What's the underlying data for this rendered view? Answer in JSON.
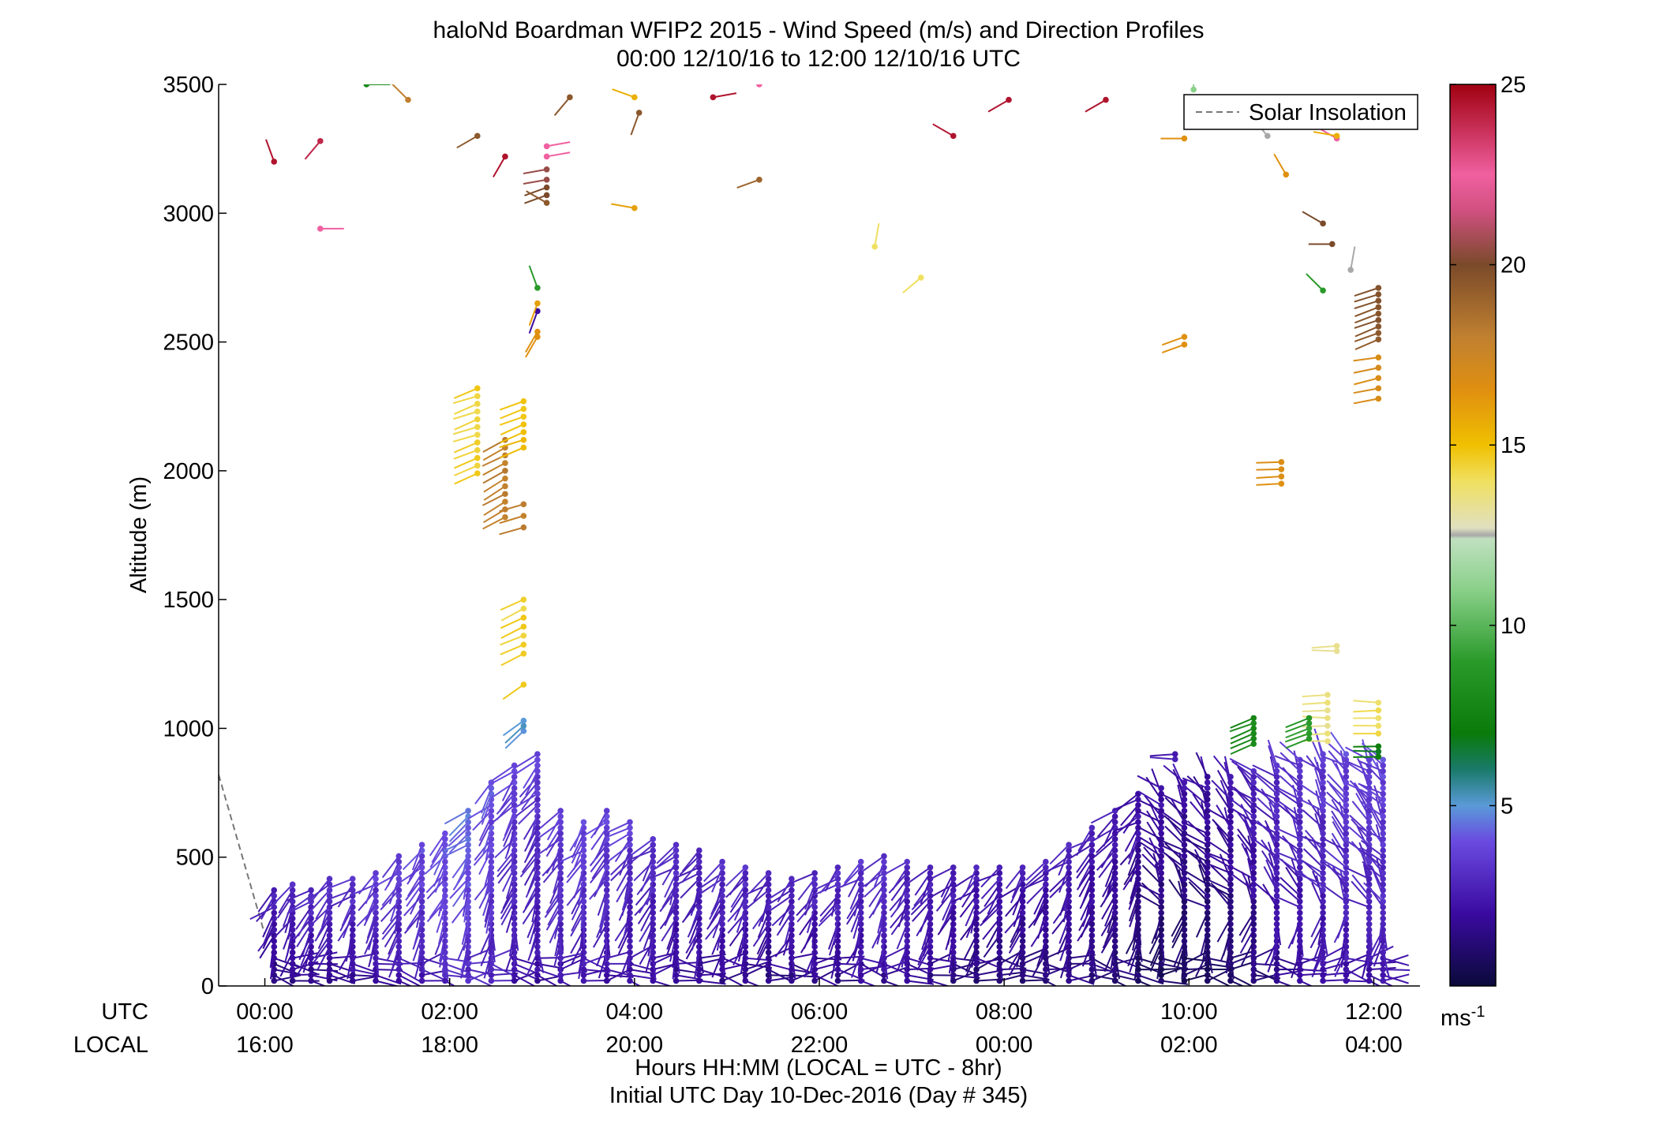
{
  "chart_data": {
    "type": "scatter",
    "title": "haloNd Boardman WFIP2 2015 - Wind Speed (m/s) and Direction Profiles",
    "subtitle": "00:00 12/10/16 to 12:00 12/10/16  UTC",
    "xlabel": "Hours HH:MM  (LOCAL = UTC - 8hr)",
    "xlabel2": "Initial UTC Day 10-Dec-2016 (Day # 345)",
    "ylabel": "Altitude (m)",
    "x_row_labels": [
      "UTC",
      "LOCAL"
    ],
    "x_ticks_utc": [
      "00:00",
      "02:00",
      "04:00",
      "06:00",
      "08:00",
      "10:00",
      "12:00"
    ],
    "x_ticks_local": [
      "16:00",
      "18:00",
      "20:00",
      "22:00",
      "00:00",
      "02:00",
      "04:00"
    ],
    "x_tick_hours": [
      0,
      2,
      4,
      6,
      8,
      10,
      12
    ],
    "xlim_hours": [
      -0.5,
      12.5
    ],
    "y_ticks": [
      "0",
      "500",
      "1000",
      "1500",
      "2000",
      "2500",
      "3000",
      "3500"
    ],
    "y_tick_values": [
      0,
      500,
      1000,
      1500,
      2000,
      2500,
      3000,
      3500
    ],
    "ylim": [
      0,
      3500
    ],
    "legend": {
      "label": "Solar Insolation",
      "placement": "top-right",
      "style": "dashed gray line"
    },
    "solar_insolation_line": {
      "color": "#777777",
      "points": [
        [
          -0.5,
          820
        ],
        [
          0.0,
          200
        ]
      ]
    },
    "colorbar": {
      "range": [
        0,
        25
      ],
      "ticks": [
        "5",
        "10",
        "15",
        "20",
        "25"
      ],
      "tick_values": [
        5,
        10,
        15,
        20,
        25
      ],
      "unit": "ms-1",
      "stops": [
        {
          "v": 0,
          "color": "#0a0a3a"
        },
        {
          "v": 2,
          "color": "#3a0aa0"
        },
        {
          "v": 4,
          "color": "#6a4ae0"
        },
        {
          "v": 5,
          "color": "#5a9ad8"
        },
        {
          "v": 6,
          "color": "#1a7a6a"
        },
        {
          "v": 7,
          "color": "#0a7a0a"
        },
        {
          "v": 9,
          "color": "#2a9a2a"
        },
        {
          "v": 11,
          "color": "#8ad08a"
        },
        {
          "v": 12.4,
          "color": "#c0e0c0"
        },
        {
          "v": 12.5,
          "color": "#a8a8a8"
        },
        {
          "v": 12.7,
          "color": "#e0e0c0"
        },
        {
          "v": 14,
          "color": "#f0e060"
        },
        {
          "v": 15,
          "color": "#f0c000"
        },
        {
          "v": 16.5,
          "color": "#e09010"
        },
        {
          "v": 18,
          "color": "#c08030"
        },
        {
          "v": 20,
          "color": "#7a4a2a"
        },
        {
          "v": 21.5,
          "color": "#d05080"
        },
        {
          "v": 22.5,
          "color": "#f060a0"
        },
        {
          "v": 25,
          "color": "#a00010"
        }
      ]
    },
    "profile_times_hours": [
      0.1,
      0.3,
      0.5,
      0.7,
      0.95,
      1.2,
      1.45,
      1.7,
      1.95,
      2.2,
      2.45,
      2.7,
      2.95,
      3.2,
      3.45,
      3.7,
      3.95,
      4.2,
      4.45,
      4.7,
      4.95,
      5.2,
      5.45,
      5.7,
      5.95,
      6.2,
      6.45,
      6.7,
      6.95,
      7.2,
      7.45,
      7.7,
      7.95,
      8.2,
      8.45,
      8.7,
      8.95,
      9.2,
      9.45,
      9.7,
      9.95,
      10.2,
      10.45,
      10.7,
      10.95,
      11.2,
      11.45,
      11.7,
      11.95,
      12.1
    ],
    "boundary_layer_top_m": [
      380,
      400,
      390,
      420,
      430,
      450,
      520,
      560,
      600,
      680,
      800,
      860,
      900,
      700,
      640,
      690,
      640,
      580,
      560,
      540,
      500,
      460,
      440,
      430,
      450,
      470,
      500,
      520,
      500,
      480,
      470,
      460,
      460,
      470,
      500,
      560,
      620,
      700,
      760,
      780,
      800,
      820,
      830,
      850,
      860,
      880,
      900,
      900,
      880,
      890
    ],
    "low_level_speed_ms": [
      2.0,
      2.2,
      2.4,
      2.5,
      2.6,
      2.8,
      3.0,
      3.2,
      3.5,
      3.8,
      3.4,
      3.0,
      2.8,
      3.0,
      3.1,
      3.0,
      2.8,
      2.6,
      2.5,
      2.4,
      2.4,
      2.3,
      2.2,
      2.2,
      2.3,
      2.4,
      2.5,
      2.6,
      2.4,
      2.2,
      2.0,
      1.9,
      1.8,
      1.8,
      1.9,
      2.0,
      2.0,
      1.8,
      1.6,
      1.5,
      1.4,
      1.4,
      1.6,
      2.0,
      2.4,
      2.6,
      2.8,
      3.0,
      3.0,
      3.1
    ],
    "upper_observations": [
      {
        "t": 0.1,
        "alt": 3200,
        "speed": 24.5,
        "dir": 340
      },
      {
        "t": 0.6,
        "alt": 3280,
        "speed": 24.0,
        "dir": 220
      },
      {
        "t": 0.6,
        "alt": 2940,
        "speed": 22.5,
        "dir": 90
      },
      {
        "t": 1.1,
        "alt": 3500,
        "speed": 8.0,
        "dir": 90
      },
      {
        "t": 1.55,
        "alt": 3440,
        "speed": 18.0,
        "dir": 315
      },
      {
        "t": 2.3,
        "alt": 3300,
        "speed": 19.5,
        "dir": 240
      },
      {
        "t": 2.6,
        "alt": 3220,
        "speed": 24.5,
        "dir": 210
      },
      {
        "t": 3.05,
        "alt": 3260,
        "speed": 22.5,
        "dir": 80
      },
      {
        "t": 3.05,
        "alt": 3220,
        "speed": 22.5,
        "dir": 80
      },
      {
        "t": 3.05,
        "alt": 3170,
        "speed": 20.5,
        "dir": 260
      },
      {
        "t": 3.05,
        "alt": 3130,
        "speed": 20.5,
        "dir": 260
      },
      {
        "t": 3.05,
        "alt": 3100,
        "speed": 20.0,
        "dir": 250
      },
      {
        "t": 3.05,
        "alt": 3070,
        "speed": 20.0,
        "dir": 250
      },
      {
        "t": 3.05,
        "alt": 3040,
        "speed": 19.5,
        "dir": 300
      },
      {
        "t": 3.3,
        "alt": 3450,
        "speed": 19.5,
        "dir": 220
      },
      {
        "t": 4.0,
        "alt": 3450,
        "speed": 15.5,
        "dir": 290
      },
      {
        "t": 4.05,
        "alt": 3390,
        "speed": 19.5,
        "dir": 200
      },
      {
        "t": 4.0,
        "alt": 3020,
        "speed": 16.0,
        "dir": 280
      },
      {
        "t": 4.85,
        "alt": 3450,
        "speed": 24.5,
        "dir": 80
      },
      {
        "t": 5.35,
        "alt": 3500,
        "speed": 22.5,
        "dir": 20
      },
      {
        "t": 5.35,
        "alt": 3130,
        "speed": 19.0,
        "dir": 250
      },
      {
        "t": 6.6,
        "alt": 2870,
        "speed": 14.0,
        "dir": 10
      },
      {
        "t": 7.1,
        "alt": 2750,
        "speed": 14.0,
        "dir": 230
      },
      {
        "t": 7.45,
        "alt": 3300,
        "speed": 24.5,
        "dir": 300
      },
      {
        "t": 8.05,
        "alt": 3440,
        "speed": 24.5,
        "dir": 240
      },
      {
        "t": 9.1,
        "alt": 3440,
        "speed": 24.5,
        "dir": 240
      },
      {
        "t": 9.95,
        "alt": 3290,
        "speed": 16.5,
        "dir": 270
      },
      {
        "t": 10.05,
        "alt": 3480,
        "speed": 11.0,
        "dir": 0
      },
      {
        "t": 9.95,
        "alt": 2520,
        "speed": 16.5,
        "dir": 250
      },
      {
        "t": 9.95,
        "alt": 2490,
        "speed": 16.5,
        "dir": 250
      },
      {
        "t": 10.85,
        "alt": 3300,
        "speed": 12.5,
        "dir": 320
      },
      {
        "t": 11.05,
        "alt": 3150,
        "speed": 16.5,
        "dir": 330
      },
      {
        "t": 11.45,
        "alt": 2960,
        "speed": 20.0,
        "dir": 300
      },
      {
        "t": 11.55,
        "alt": 2880,
        "speed": 20.0,
        "dir": 270
      },
      {
        "t": 11.45,
        "alt": 2700,
        "speed": 9.0,
        "dir": 315
      },
      {
        "t": 11.75,
        "alt": 2780,
        "speed": 12.5,
        "dir": 10
      },
      {
        "t": 11.6,
        "alt": 3290,
        "speed": 22.5,
        "dir": 300
      },
      {
        "t": 11.6,
        "alt": 3300,
        "speed": 15.5,
        "dir": 280
      },
      {
        "t": 2.95,
        "alt": 2710,
        "speed": 9.0,
        "dir": 340
      },
      {
        "t": 2.95,
        "alt": 2620,
        "speed": 2.0,
        "dir": 200
      },
      {
        "t": 2.95,
        "alt": 2650,
        "speed": 16.0,
        "dir": 200
      },
      {
        "t": 2.95,
        "alt": 2540,
        "speed": 16.5,
        "dir": 210
      },
      {
        "t": 2.95,
        "alt": 2520,
        "speed": 16.5,
        "dir": 210
      }
    ],
    "mid_columns": [
      {
        "t": 2.3,
        "alt_from": 1990,
        "alt_to": 2340,
        "speed": 14.5,
        "dir": 250,
        "step": 30
      },
      {
        "t": 2.6,
        "alt_from": 1820,
        "alt_to": 2130,
        "speed": 18.0,
        "dir": 240,
        "step": 30
      },
      {
        "t": 2.8,
        "alt_from": 2090,
        "alt_to": 2270,
        "speed": 15.0,
        "dir": 250,
        "step": 30
      },
      {
        "t": 2.8,
        "alt_from": 1780,
        "alt_to": 1910,
        "speed": 18.0,
        "dir": 250,
        "step": 45
      },
      {
        "t": 2.8,
        "alt_from": 1290,
        "alt_to": 1530,
        "speed": 14.5,
        "dir": 245,
        "step": 35
      },
      {
        "t": 2.8,
        "alt_from": 1170,
        "alt_to": 1170,
        "speed": 14.5,
        "dir": 230,
        "step": 30
      },
      {
        "t": 2.8,
        "alt_from": 990,
        "alt_to": 1030,
        "speed": 5.0,
        "dir": 230,
        "step": 20
      },
      {
        "t": 11.0,
        "alt_from": 1950,
        "alt_to": 2060,
        "speed": 16.5,
        "dir": 270,
        "step": 28
      },
      {
        "t": 11.6,
        "alt_from": 1300,
        "alt_to": 1320,
        "speed": 13.5,
        "dir": 270,
        "step": 20
      },
      {
        "t": 11.5,
        "alt_from": 950,
        "alt_to": 1130,
        "speed": 13.5,
        "dir": 270,
        "step": 30
      },
      {
        "t": 12.05,
        "alt_from": 980,
        "alt_to": 1120,
        "speed": 14.0,
        "dir": 270,
        "step": 30
      },
      {
        "t": 10.7,
        "alt_from": 940,
        "alt_to": 1040,
        "speed": 8.0,
        "dir": 250,
        "step": 20
      },
      {
        "t": 11.3,
        "alt_from": 960,
        "alt_to": 1040,
        "speed": 9.0,
        "dir": 250,
        "step": 20
      },
      {
        "t": 12.05,
        "alt_from": 890,
        "alt_to": 930,
        "speed": 7.0,
        "dir": 270,
        "step": 20
      },
      {
        "t": 12.05,
        "alt_from": 2510,
        "alt_to": 2720,
        "speed": 19.5,
        "dir": 250,
        "step": 25
      },
      {
        "t": 12.05,
        "alt_from": 2280,
        "alt_to": 2440,
        "speed": 17.0,
        "dir": 260,
        "step": 40
      },
      {
        "t": 9.85,
        "alt_from": 880,
        "alt_to": 900,
        "speed": 2.5,
        "dir": 270,
        "step": 20
      }
    ]
  }
}
